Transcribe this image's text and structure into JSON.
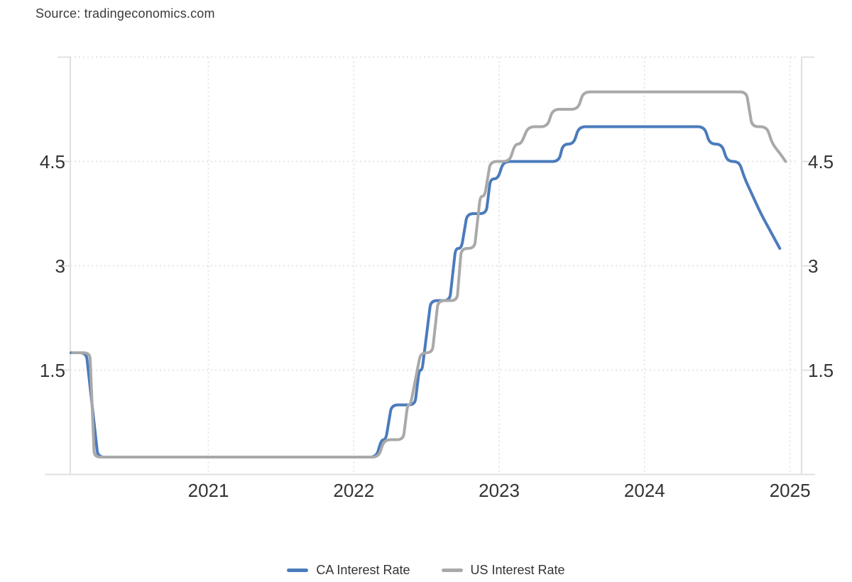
{
  "source": {
    "label": "Source: tradingeconomics.com"
  },
  "chart_data": {
    "type": "line",
    "title": "",
    "xlabel": "",
    "ylabel": "",
    "grid": "dotted",
    "legend_position": "bottom",
    "x_axis": {
      "range": [
        2020.05,
        2025.08
      ],
      "ticks": [
        2021,
        2022,
        2023,
        2024,
        2025
      ],
      "tick_labels": [
        "2021",
        "2022",
        "2023",
        "2024",
        "2025"
      ]
    },
    "y_axis": {
      "range": [
        0,
        6
      ],
      "gridlines": [
        1.5,
        3,
        4.5,
        6
      ],
      "ticks": [
        1.5,
        3,
        4.5
      ],
      "tick_labels": [
        "1.5",
        "3",
        "4.5"
      ],
      "labels_on_both_sides": true
    },
    "series": [
      {
        "name": "CA Interest Rate",
        "color": "#4b7bbc",
        "points": [
          [
            2020.055,
            1.75
          ],
          [
            2020.16,
            1.75
          ],
          [
            2020.24,
            0.25
          ],
          [
            2022.155,
            0.25
          ],
          [
            2022.19,
            0.5
          ],
          [
            2022.22,
            0.5
          ],
          [
            2022.26,
            1.0
          ],
          [
            2022.42,
            1.0
          ],
          [
            2022.45,
            1.5
          ],
          [
            2022.47,
            1.5
          ],
          [
            2022.53,
            2.5
          ],
          [
            2022.66,
            2.5
          ],
          [
            2022.7,
            3.25
          ],
          [
            2022.74,
            3.25
          ],
          [
            2022.78,
            3.75
          ],
          [
            2022.91,
            3.75
          ],
          [
            2022.94,
            4.25
          ],
          [
            2022.99,
            4.25
          ],
          [
            2023.03,
            4.5
          ],
          [
            2023.41,
            4.5
          ],
          [
            2023.44,
            4.75
          ],
          [
            2023.51,
            4.75
          ],
          [
            2023.55,
            5.0
          ],
          [
            2024.41,
            5.0
          ],
          [
            2024.45,
            4.75
          ],
          [
            2024.53,
            4.75
          ],
          [
            2024.57,
            4.5
          ],
          [
            2024.65,
            4.5
          ],
          [
            2024.69,
            4.25
          ],
          [
            2024.8,
            3.75
          ],
          [
            2024.93,
            3.25
          ]
        ]
      },
      {
        "name": "US Interest Rate",
        "color": "#a9a9a9",
        "points": [
          [
            2020.065,
            1.75
          ],
          [
            2020.185,
            1.75
          ],
          [
            2020.215,
            0.25
          ],
          [
            2022.17,
            0.25
          ],
          [
            2022.21,
            0.5
          ],
          [
            2022.34,
            0.5
          ],
          [
            2022.37,
            1.0
          ],
          [
            2022.39,
            1.0
          ],
          [
            2022.46,
            1.75
          ],
          [
            2022.54,
            1.75
          ],
          [
            2022.58,
            2.5
          ],
          [
            2022.71,
            2.5
          ],
          [
            2022.74,
            3.25
          ],
          [
            2022.83,
            3.25
          ],
          [
            2022.87,
            4.0
          ],
          [
            2022.9,
            4.0
          ],
          [
            2022.94,
            4.5
          ],
          [
            2023.07,
            4.5
          ],
          [
            2023.11,
            4.75
          ],
          [
            2023.15,
            4.75
          ],
          [
            2023.2,
            5.0
          ],
          [
            2023.33,
            5.0
          ],
          [
            2023.37,
            5.25
          ],
          [
            2023.54,
            5.25
          ],
          [
            2023.58,
            5.5
          ],
          [
            2024.7,
            5.5
          ],
          [
            2024.74,
            5.0
          ],
          [
            2024.84,
            5.0
          ],
          [
            2024.88,
            4.75
          ],
          [
            2024.93,
            4.62
          ],
          [
            2024.97,
            4.5
          ]
        ]
      }
    ]
  },
  "colors": {
    "background": "#ffffff",
    "grid_dotted": "#e4e4e4",
    "axis_line": "#e0e0e0",
    "axis_text": "#333333",
    "source_text": "#3a3a3a",
    "ca_line": "#4b7bbc",
    "us_line": "#a9a9a9"
  }
}
